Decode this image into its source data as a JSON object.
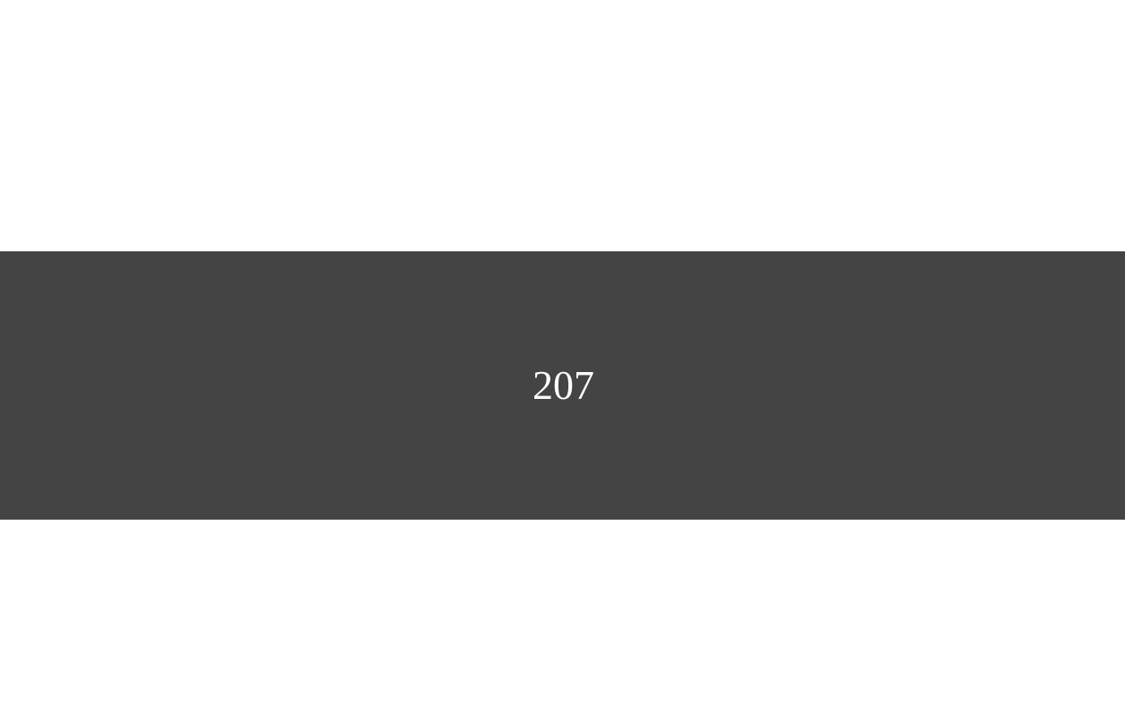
{
  "banner": {
    "value": "207",
    "background_color": "#444444",
    "text_color": "#ffffff"
  },
  "page": {
    "background_color": "#ffffff"
  }
}
